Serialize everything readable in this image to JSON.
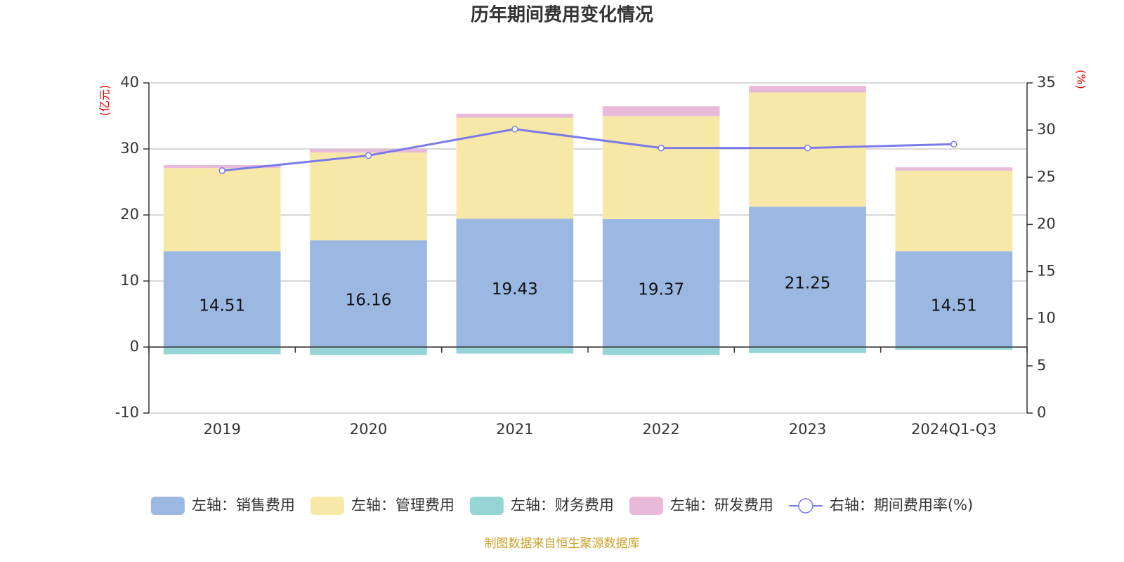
{
  "chart_data": {
    "type": "bar+line",
    "title": "历年期间费用变化情况",
    "y_label": "(亿元)",
    "y2_label": "(%)",
    "categories": [
      "2019",
      "2020",
      "2021",
      "2022",
      "2023",
      "2024Q1-Q3"
    ],
    "ylim": [
      -10,
      40
    ],
    "yticks": [
      -10,
      0,
      10,
      20,
      30,
      40
    ],
    "y2lim": [
      0,
      35
    ],
    "y2ticks": [
      0,
      5,
      10,
      15,
      20,
      25,
      30,
      35
    ],
    "grid": true,
    "stacked": true,
    "legend": "bottom",
    "series": [
      {
        "name": "左轴：销售费用",
        "type": "bar",
        "color": "#9bb8e2",
        "show_labels": true,
        "values": [
          14.51,
          16.16,
          19.43,
          19.37,
          21.25,
          14.51
        ]
      },
      {
        "name": "左轴：管理费用",
        "type": "bar",
        "color": "#f8e8a8",
        "values": [
          12.6,
          13.3,
          15.3,
          15.6,
          17.3,
          12.2
        ]
      },
      {
        "name": "左轴：财务费用",
        "type": "bar",
        "color": "#96d5d5",
        "values": [
          -1.1,
          -1.2,
          -1.0,
          -1.2,
          -0.9,
          -0.4
        ]
      },
      {
        "name": "左轴：研发费用",
        "type": "bar",
        "color": "#e8b9d9",
        "values": [
          0.45,
          0.5,
          0.6,
          1.5,
          1.0,
          0.5
        ]
      },
      {
        "name": "右轴：期间费用率(%)",
        "type": "line",
        "axis": "y2",
        "color": "#7b7be8",
        "values": [
          25.7,
          27.3,
          30.1,
          28.1,
          28.1,
          28.5
        ]
      }
    ],
    "source": "制图数据来自恒生聚源数据库"
  }
}
